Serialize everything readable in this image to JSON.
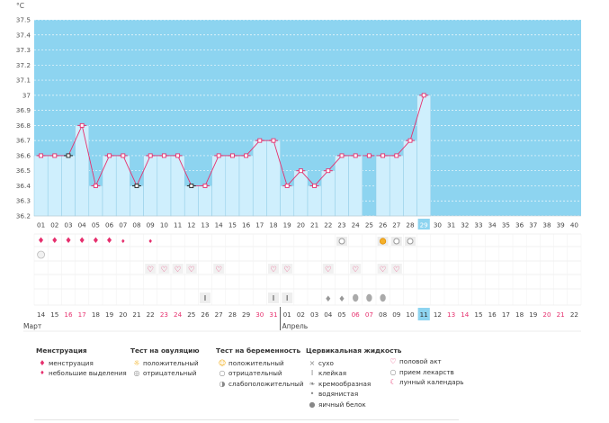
{
  "chart_data": {
    "type": "line",
    "yunit": "°C",
    "ylim": [
      36.2,
      37.5
    ],
    "yticks": [
      "37.5",
      "37.4",
      "37.3",
      "37.2",
      "37.1",
      "37",
      "36.9",
      "36.8",
      "36.7",
      "36.6",
      "36.5",
      "36.4",
      "36.3",
      "36.2"
    ],
    "cycle_days": [
      "01",
      "02",
      "03",
      "04",
      "05",
      "06",
      "07",
      "08",
      "09",
      "10",
      "11",
      "12",
      "13",
      "14",
      "15",
      "16",
      "17",
      "18",
      "19",
      "20",
      "21",
      "22",
      "23",
      "24",
      "25",
      "26",
      "27",
      "28",
      "29",
      "30",
      "31",
      "32",
      "33",
      "34",
      "35",
      "36",
      "37",
      "38",
      "39",
      "40"
    ],
    "current_day_index": 28,
    "temperatures": [
      36.6,
      36.6,
      36.6,
      36.8,
      36.4,
      36.6,
      36.6,
      36.4,
      36.6,
      36.6,
      36.6,
      36.4,
      36.4,
      36.6,
      36.6,
      36.6,
      36.7,
      36.7,
      36.4,
      36.5,
      36.4,
      36.5,
      36.6,
      36.6,
      36.6,
      36.6,
      36.6,
      36.7,
      37.0
    ],
    "black_markers": [
      2,
      7,
      11
    ],
    "dashed_segment": [
      23,
      25
    ],
    "gap_column": 24,
    "calendar_dates": [
      "14",
      "15",
      "16",
      "17",
      "18",
      "19",
      "20",
      "21",
      "22",
      "23",
      "24",
      "25",
      "26",
      "27",
      "28",
      "29",
      "30",
      "31",
      "01",
      "02",
      "03",
      "04",
      "05",
      "06",
      "07",
      "08",
      "09",
      "10",
      "11",
      "12",
      "13",
      "14",
      "15",
      "16",
      "17",
      "18",
      "19",
      "20",
      "21",
      "22"
    ],
    "weekend_indices": [
      2,
      3,
      9,
      10,
      16,
      17,
      23,
      24,
      30,
      31,
      37,
      38
    ],
    "month_labels": [
      {
        "text": "Март",
        "index": 0
      },
      {
        "text": "Апрель",
        "index": 18
      }
    ],
    "rows": {
      "menstruation_heavy": [
        0,
        1,
        2,
        3,
        4,
        5
      ],
      "menstruation_light": [
        6,
        8
      ],
      "pill": [
        0
      ],
      "ovulation_negative": [
        22,
        26,
        27
      ],
      "ovulation_positive": [
        25
      ],
      "intercourse": [
        8,
        9,
        10,
        11,
        13,
        17,
        18,
        21,
        23,
        25,
        26
      ],
      "sticky": [
        12,
        17,
        18
      ],
      "watery": [
        21,
        22
      ],
      "egg_white": [
        23,
        24,
        25
      ]
    },
    "colors": {
      "plot_bg": "#8dd4f0",
      "bar": "#cfeffd",
      "bar_edge": "#8fcbe6",
      "line": "#e6306e",
      "weekend": "#e6306e",
      "current": "#8dd4f0"
    }
  },
  "legend": {
    "menstruation": {
      "title": "Менструация",
      "items": [
        "менструация",
        "небольшие выделения"
      ]
    },
    "ovulation_test": {
      "title": "Тест на овуляцию",
      "items": [
        "положительный",
        "отрицательный"
      ]
    },
    "pregnancy_test": {
      "title": "Тест на беременность",
      "items": [
        "положительный",
        "отрицательный",
        "слабоположительный"
      ]
    },
    "cervical_fluid": {
      "title": "Цервикальная жидкость",
      "items": [
        "сухо",
        "клейкая",
        "кремообразная",
        "водянистая",
        "яичный белок"
      ]
    },
    "other": {
      "items": [
        "половой акт",
        "прием лекарств",
        "лунный календарь"
      ]
    }
  },
  "icons": [
    "drop-icon",
    "small-drop-icon",
    "sun-icon",
    "circle-icon",
    "heart-icon",
    "pill-icon",
    "moon-icon",
    "cross-icon",
    "sticky-icon",
    "cream-icon",
    "watery-icon",
    "egg-white-icon"
  ]
}
